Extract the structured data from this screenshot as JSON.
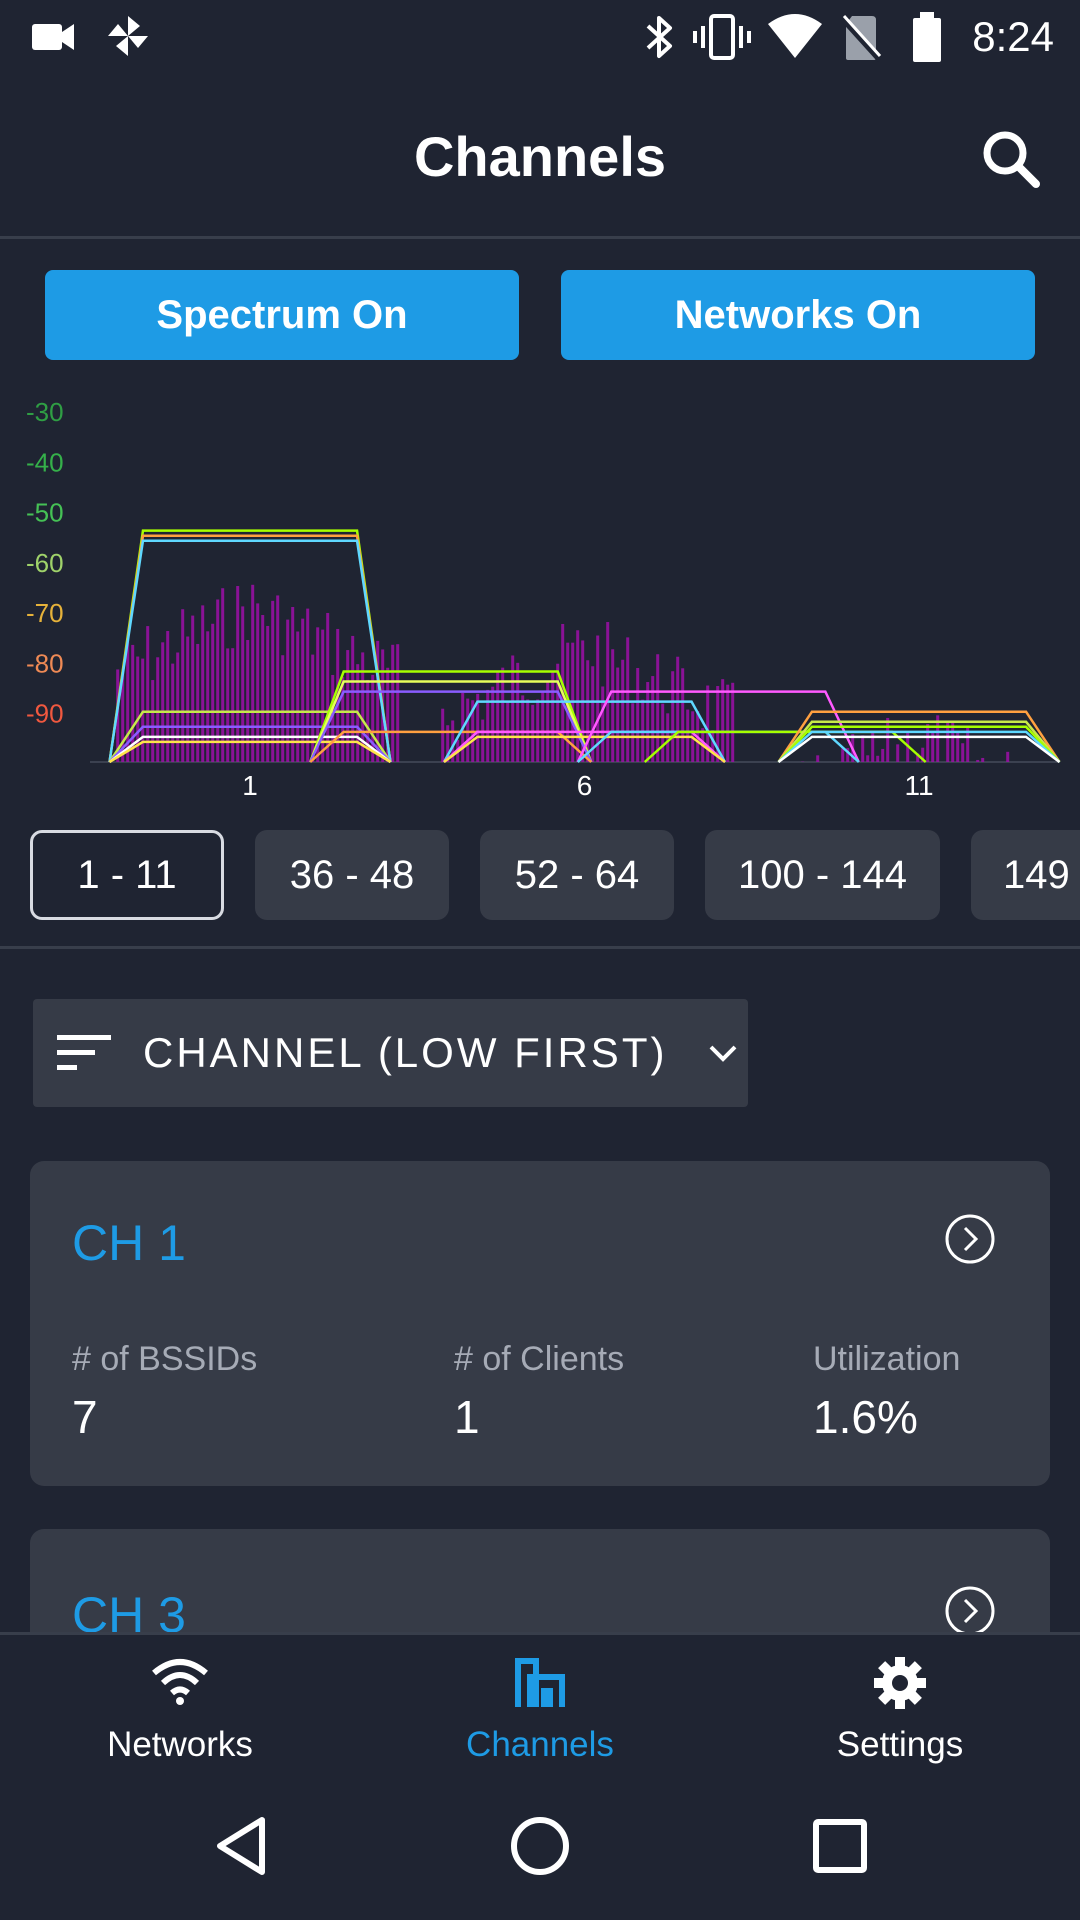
{
  "status_bar": {
    "time": "8:24",
    "left_icons": [
      "video-camera-icon",
      "pinwheel-icon"
    ],
    "right_icons": [
      "bluetooth-icon",
      "vibrate-icon",
      "wifi-icon",
      "no-sim-icon",
      "battery-icon"
    ]
  },
  "app_bar": {
    "title": "Channels",
    "search_icon": "search-icon"
  },
  "toggles": {
    "spectrum_label": "Spectrum On",
    "networks_label": "Networks On",
    "accent_color": "#1e9be5"
  },
  "chart_data": {
    "type": "area",
    "y_tick_labels": [
      "-30",
      "-40",
      "-50",
      "-60",
      "-70",
      "-80",
      "-90"
    ],
    "y_tick_colors": [
      "#2f9e44",
      "#35b04a",
      "#45c155",
      "#9fd26a",
      "#e6b23a",
      "#ef8a55",
      "#f0583f"
    ],
    "ylim": [
      -100,
      -30
    ],
    "x_tick_labels": [
      "1",
      "6",
      "11"
    ],
    "xlim": [
      -1.5,
      14.5
    ],
    "spectrum_color": "#9d0fa8",
    "networks": [
      {
        "center": 1,
        "level": -54,
        "color": "#a6ff00"
      },
      {
        "center": 1,
        "level": -55,
        "color": "#ffa040"
      },
      {
        "center": 1,
        "level": -56,
        "color": "#5fd8ff"
      },
      {
        "center": 1,
        "level": -90,
        "color": "#c8e84a"
      },
      {
        "center": 1,
        "level": -93,
        "color": "#8a5cff"
      },
      {
        "center": 1,
        "level": -95,
        "color": "#ffffff"
      },
      {
        "center": 1,
        "level": -96,
        "color": "#ffe44a"
      },
      {
        "center": 4,
        "level": -82,
        "color": "#a6ff00"
      },
      {
        "center": 4,
        "level": -84,
        "color": "#e6ff5a"
      },
      {
        "center": 4,
        "level": -86,
        "color": "#8a5cff"
      },
      {
        "center": 4,
        "level": -94,
        "color": "#ffa040"
      },
      {
        "center": 6,
        "level": -88,
        "color": "#5fd8ff"
      },
      {
        "center": 6,
        "level": -94,
        "color": "#ff5aff"
      },
      {
        "center": 6,
        "level": -95,
        "color": "#ffe44a"
      },
      {
        "center": 8,
        "level": -86,
        "color": "#ff5aff"
      },
      {
        "center": 8,
        "level": -94,
        "color": "#5fd8ff"
      },
      {
        "center": 9,
        "level": -94,
        "color": "#a6ff00"
      },
      {
        "center": 11,
        "level": -90,
        "color": "#ffa040"
      },
      {
        "center": 11,
        "level": -92,
        "color": "#c8e84a"
      },
      {
        "center": 11,
        "level": -93,
        "color": "#a6ff00"
      },
      {
        "center": 11,
        "level": -94,
        "color": "#5fd8ff"
      },
      {
        "center": 11,
        "level": -95,
        "color": "#ffffff"
      }
    ],
    "spectrum_peaks": [
      {
        "channel": 1,
        "level": -62
      },
      {
        "channel": 6,
        "level": -70
      },
      {
        "channel": 11,
        "level": -88
      }
    ]
  },
  "channel_ranges": {
    "tabs": [
      "1 - 11",
      "36 - 48",
      "52 - 64",
      "100 - 144",
      "149"
    ],
    "active_index": 0
  },
  "sort": {
    "label": "CHANNEL (LOW FIRST)",
    "icon": "sort-icon",
    "dropdown_icon": "chevron-down-icon"
  },
  "cards": [
    {
      "title": "CH 1",
      "bssids_label": "# of BSSIDs",
      "bssids_value": "7",
      "clients_label": "# of Clients",
      "clients_value": "1",
      "utilization_label": "Utilization",
      "utilization_value": "1.6%"
    },
    {
      "title": "CH 3"
    }
  ],
  "bottom_nav": {
    "items": [
      {
        "label": "Networks",
        "icon": "wifi-icon"
      },
      {
        "label": "Channels",
        "icon": "channels-icon"
      },
      {
        "label": "Settings",
        "icon": "gear-icon"
      }
    ],
    "active_index": 1,
    "active_color": "#1e9be5"
  },
  "system_nav": [
    "back-icon",
    "home-icon",
    "recents-icon"
  ]
}
